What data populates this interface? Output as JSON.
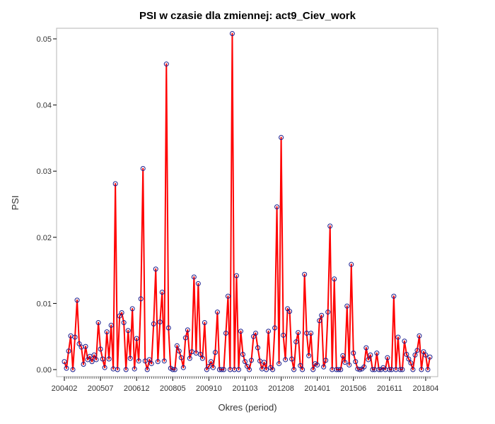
{
  "chart_data": {
    "type": "line",
    "title": "PSI w czasie dla zmiennej: act9_Ciev_work",
    "xlabel": "Okres (period)",
    "ylabel": "PSI",
    "ylim": [
      0,
      0.05
    ],
    "yticks": [
      0.0,
      0.01,
      0.02,
      0.03,
      0.04,
      0.05
    ],
    "ytick_labels": [
      "0.00",
      "0.01",
      "0.02",
      "0.03",
      "0.04",
      "0.05"
    ],
    "xtick_labels": [
      "200402",
      "200507",
      "200612",
      "200805",
      "200910",
      "201103",
      "201208",
      "201401",
      "201506",
      "201611",
      "201804"
    ],
    "period_start": "200402",
    "period_end": "201806",
    "colors": {
      "line": "#ff0000",
      "marker": "#1a1a8c",
      "frame": "#b4b4b4",
      "text": "#333333"
    },
    "series": [
      {
        "name": "PSI",
        "values": [
          0.0012,
          0.0002,
          0.0028,
          0.0051,
          0.0,
          0.0049,
          0.0105,
          0.0039,
          0.0034,
          0.0008,
          0.0035,
          0.0015,
          0.002,
          0.0012,
          0.0022,
          0.0015,
          0.0071,
          0.0031,
          0.0016,
          0.0003,
          0.0057,
          0.0016,
          0.0067,
          0.0001,
          0.0281,
          0.0,
          0.0081,
          0.0086,
          0.0071,
          0.0,
          0.0059,
          0.0017,
          0.0092,
          0.0001,
          0.0047,
          0.0013,
          0.0107,
          0.0304,
          0.0013,
          0.0,
          0.0015,
          0.0009,
          0.0069,
          0.0152,
          0.0012,
          0.0072,
          0.0117,
          0.0013,
          0.0462,
          0.0063,
          0.0002,
          0.0,
          0.0,
          0.0036,
          0.0028,
          0.0018,
          0.0003,
          0.0048,
          0.006,
          0.0017,
          0.0027,
          0.014,
          0.0025,
          0.013,
          0.0023,
          0.0017,
          0.0071,
          0.0,
          0.0005,
          0.0012,
          0.0003,
          0.0026,
          0.0087,
          0.0,
          0.0,
          0.0,
          0.0055,
          0.0111,
          0.0,
          0.0508,
          0.0,
          0.0142,
          0.0,
          0.0058,
          0.0023,
          0.0012,
          0.0005,
          0.0,
          0.0014,
          0.005,
          0.0055,
          0.0033,
          0.0013,
          0.0001,
          0.0011,
          0.0,
          0.0058,
          0.0003,
          0.0,
          0.0063,
          0.0246,
          0.0009,
          0.0351,
          0.0052,
          0.0015,
          0.0092,
          0.0088,
          0.0016,
          0.0,
          0.0042,
          0.0056,
          0.0006,
          0.0,
          0.0144,
          0.0055,
          0.0021,
          0.0055,
          0.0,
          0.0009,
          0.0007,
          0.0074,
          0.0082,
          0.0004,
          0.0014,
          0.0087,
          0.0217,
          0.0,
          0.0137,
          0.0,
          0.0,
          0.0,
          0.0021,
          0.0011,
          0.0096,
          0.0007,
          0.0159,
          0.0025,
          0.0012,
          0.0001,
          0.0,
          0.0001,
          0.0004,
          0.0033,
          0.0015,
          0.0022,
          0.0,
          0.0,
          0.0025,
          0.0,
          0.0,
          0.0003,
          0.0,
          0.0018,
          0.0,
          0.0,
          0.0111,
          0.0,
          0.0049,
          0.0,
          0.0,
          0.0043,
          0.0023,
          0.0016,
          0.001,
          0.0,
          0.0022,
          0.0029,
          0.0051,
          0.0,
          0.0027,
          0.0022,
          0.0,
          0.0019
        ]
      }
    ]
  }
}
